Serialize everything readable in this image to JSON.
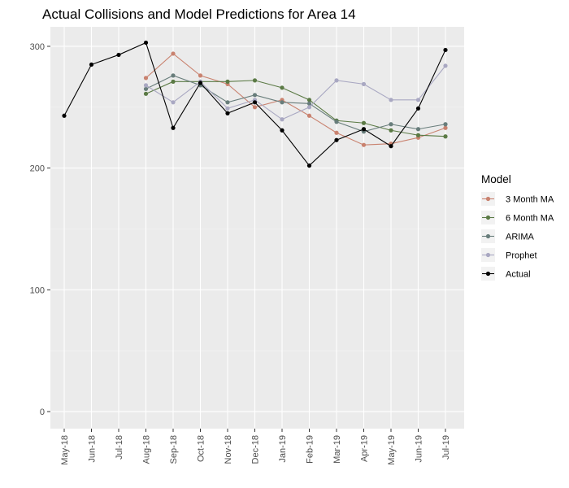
{
  "chart_data": {
    "type": "line",
    "title": "Actual Collisions and Model Predictions for Area 14",
    "xlabel": "",
    "ylabel": "",
    "categories": [
      "May-18",
      "Jun-18",
      "Jul-18",
      "Aug-18",
      "Sep-18",
      "Oct-18",
      "Nov-18",
      "Dec-18",
      "Jan-19",
      "Feb-19",
      "Mar-19",
      "Apr-19",
      "May-19",
      "Jun-19",
      "Jul-19"
    ],
    "ylim": [
      -14,
      316
    ],
    "yticks": [
      0,
      100,
      200,
      300
    ],
    "grid": true,
    "legend": {
      "title": "Model",
      "placement": "right"
    },
    "series": [
      {
        "name": "3 Month MA",
        "color": "#c9826f",
        "values": [
          null,
          null,
          null,
          274,
          294,
          276,
          269,
          250,
          256,
          243,
          229,
          219,
          220,
          225,
          233
        ]
      },
      {
        "name": "6 Month MA",
        "color": "#5b7a45",
        "values": [
          null,
          null,
          null,
          261,
          271,
          271,
          271,
          272,
          266,
          256,
          239,
          237,
          231,
          227,
          226
        ]
      },
      {
        "name": "ARIMA",
        "color": "#687d7b",
        "values": [
          null,
          null,
          null,
          265,
          276,
          268,
          254,
          260,
          254,
          253,
          238,
          230,
          236,
          232,
          236
        ]
      },
      {
        "name": "Prophet",
        "color": "#a9a8c2",
        "values": [
          null,
          null,
          null,
          268,
          254,
          271,
          249,
          256,
          240,
          250,
          272,
          269,
          256,
          256,
          284
        ]
      },
      {
        "name": "Actual",
        "color": "#000000",
        "values": [
          243,
          285,
          293,
          303,
          233,
          270,
          245,
          254,
          231,
          202,
          223,
          232,
          218,
          249,
          297
        ]
      }
    ]
  }
}
